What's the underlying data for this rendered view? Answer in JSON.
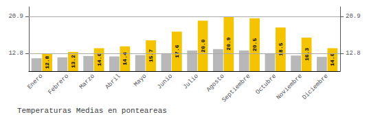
{
  "chart_data": {
    "type": "bar",
    "title": "Temperaturas Medias en ponteareas",
    "categories": [
      "Enero",
      "Febrero",
      "Marzo",
      "Abril",
      "Mayo",
      "Junio",
      "Julio",
      "Agosto",
      "Septiembre",
      "Octubre",
      "Noviembre",
      "Diciembre"
    ],
    "series": [
      {
        "color": "#B8B8B8",
        "values": [
          11.8,
          12.0,
          12.3,
          12.2,
          12.5,
          12.9,
          13.5,
          13.8,
          13.5,
          12.9,
          12.4,
          12.1
        ]
      },
      {
        "color": "#F5C400",
        "values": [
          12.8,
          13.2,
          14.0,
          14.4,
          15.7,
          17.6,
          20.0,
          20.9,
          20.5,
          18.5,
          16.3,
          14.0
        ],
        "value_labels": [
          "12.8",
          "13.2",
          "14.0",
          "14.4",
          "15.7",
          "17.6",
          "20.0",
          "20.9",
          "20.5",
          "18.5",
          "16.3",
          "14.0"
        ]
      }
    ],
    "data_labels": true,
    "ylim": [
      9.0,
      23.0
    ],
    "yticks": [
      12.8,
      20.9
    ],
    "y2lim": [
      9.0,
      23.0
    ],
    "y2ticks": [
      12.8,
      20.9
    ],
    "grid": true
  }
}
